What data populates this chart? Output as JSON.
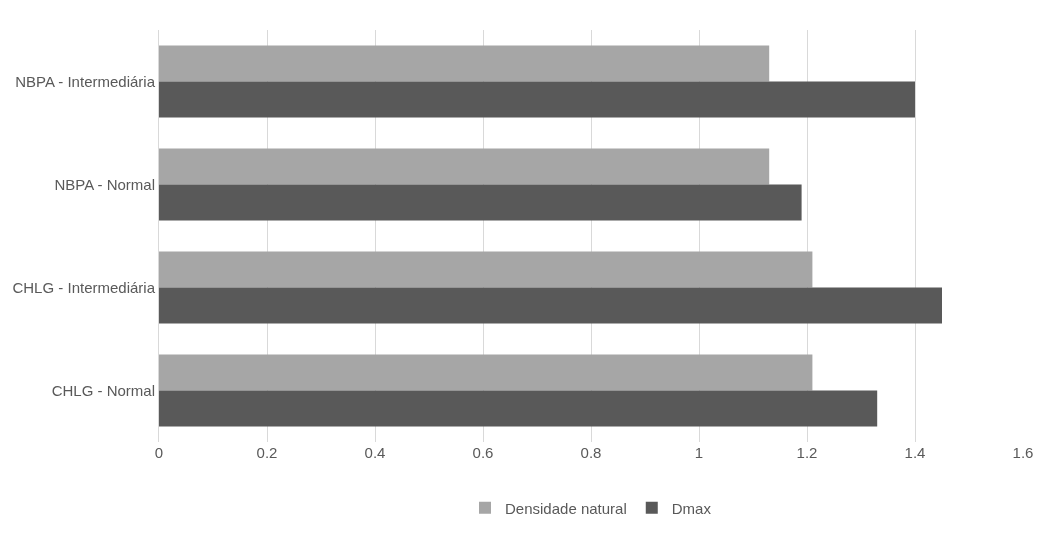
{
  "chart_data": {
    "type": "bar",
    "orientation": "horizontal",
    "categories": [
      "NBPA - Intermediária",
      "NBPA - Normal",
      "CHLG - Intermediária",
      "CHLG - Normal"
    ],
    "series": [
      {
        "name": "Densidade natural",
        "color": "#a6a6a6",
        "values": [
          1.13,
          1.13,
          1.21,
          1.21
        ]
      },
      {
        "name": "Dmax",
        "color": "#595959",
        "values": [
          1.4,
          1.19,
          1.45,
          1.33
        ]
      }
    ],
    "xlim": [
      0,
      1.6
    ],
    "xticks": [
      0,
      0.2,
      0.4,
      0.6,
      0.8,
      1,
      1.2,
      1.4,
      1.6
    ],
    "grid": "x",
    "legend": "bottom"
  }
}
